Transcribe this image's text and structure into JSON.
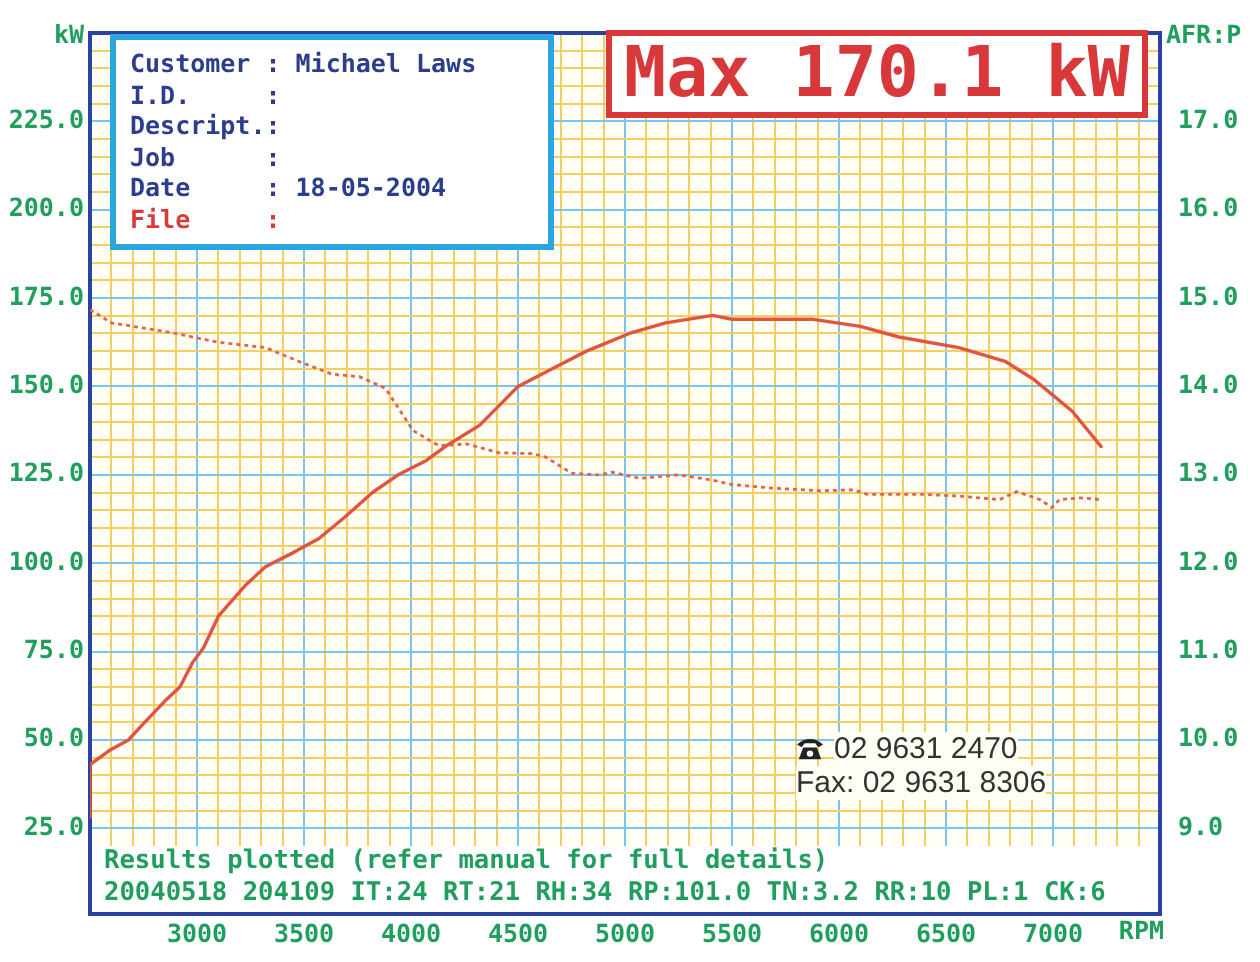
{
  "chart_data": {
    "type": "line",
    "xlabel": "RPM",
    "ylabel": "kW",
    "y2label": "AFR:P",
    "annotations": [
      "Customer : Michael Laws",
      "I.D. :",
      "Descript.:",
      "Job :",
      "Date : 18-05-2004",
      "File :",
      "Max 170.1 kW",
      "02 9631 2470",
      "Fax: 02 9631 8306",
      "Results plotted (refer manual for full details)",
      "20040518 204109 IT:24 RT:21 RH:34 RP:101.0 TN:3.2 RR:10 PL:1 CK:6"
    ],
    "series": [
      {
        "color": "#e0553f",
        "x": [
          2500,
          2500,
          2590,
          2680,
          2740,
          2850,
          2920,
          2980,
          3030,
          3100,
          3230,
          3320,
          3450,
          3570,
          3690,
          3820,
          3940,
          4070,
          4160,
          4320,
          4500,
          4660,
          4820,
          4900,
          5020,
          5190,
          5410,
          5500,
          5880,
          6100,
          6280,
          6560,
          6780,
          6910,
          7090,
          7225
        ],
        "values": [
          28,
          43,
          47,
          50,
          54,
          61,
          65,
          72,
          76,
          85,
          94,
          99,
          103,
          107,
          113,
          120,
          125,
          129,
          133,
          139,
          150,
          155,
          160,
          162,
          165,
          168,
          170.1,
          169,
          169,
          167,
          164,
          161,
          157,
          152,
          143,
          133
        ]
      },
      {
        "axis": "y2",
        "color": "#e0654f",
        "line_style": "dotted",
        "x": [
          2500,
          2600,
          2880,
          3100,
          3320,
          3480,
          3630,
          3760,
          3880,
          3940,
          4010,
          4130,
          4260,
          4410,
          4570,
          4630,
          4750,
          4880,
          4940,
          5070,
          5250,
          5410,
          5500,
          5690,
          5910,
          6070,
          6130,
          6380,
          6560,
          6750,
          6830,
          6940,
          6995,
          7030,
          7130,
          7220
        ],
        "values": [
          14.87,
          14.72,
          14.61,
          14.5,
          14.44,
          14.28,
          14.14,
          14.11,
          13.98,
          13.76,
          13.5,
          13.33,
          13.35,
          13.25,
          13.24,
          13.2,
          13.02,
          13.0,
          13.03,
          12.96,
          13.0,
          12.94,
          12.89,
          12.85,
          12.82,
          12.83,
          12.78,
          12.78,
          12.76,
          12.72,
          12.81,
          12.72,
          12.63,
          12.72,
          12.74,
          12.72
        ]
      }
    ],
    "xlim": [
      2500,
      7500
    ],
    "xticks": [
      {
        "value": 2600,
        "label": null
      },
      {
        "value": 2700,
        "label": null
      },
      {
        "value": 2800,
        "label": null
      },
      {
        "value": 2900,
        "label": null
      },
      3000,
      {
        "value": 3100,
        "label": null
      },
      {
        "value": 3200,
        "label": null
      },
      {
        "value": 3300,
        "label": null
      },
      {
        "value": 3400,
        "label": null
      },
      3500,
      {
        "value": 3600,
        "label": null
      },
      {
        "value": 3700,
        "label": null
      },
      {
        "value": 3800,
        "label": null
      },
      {
        "value": 3900,
        "label": null
      },
      4000,
      {
        "value": 4100,
        "label": null
      },
      {
        "value": 4200,
        "label": null
      },
      {
        "value": 4300,
        "label": null
      },
      {
        "value": 4400,
        "label": null
      },
      4500,
      {
        "value": 4600,
        "label": null
      },
      {
        "value": 4700,
        "label": null
      },
      {
        "value": 4800,
        "label": null
      },
      {
        "value": 4900,
        "label": null
      },
      5000,
      {
        "value": 5100,
        "label": null
      },
      {
        "value": 5200,
        "label": null
      },
      {
        "value": 5300,
        "label": null
      },
      {
        "value": 5400,
        "label": null
      },
      5500,
      {
        "value": 5600,
        "label": null
      },
      {
        "value": 5700,
        "label": null
      },
      {
        "value": 5800,
        "label": null
      },
      {
        "value": 5900,
        "label": null
      },
      6000,
      {
        "value": 6100,
        "label": null
      },
      {
        "value": 6200,
        "label": null
      },
      {
        "value": 6300,
        "label": null
      },
      {
        "value": 6400,
        "label": null
      },
      6500,
      {
        "value": 6600,
        "label": null
      },
      {
        "value": 6700,
        "label": null
      },
      {
        "value": 6800,
        "label": null
      },
      {
        "value": 6900,
        "label": null
      },
      7000,
      {
        "value": 7100,
        "label": null
      },
      {
        "value": 7200,
        "label": null
      },
      {
        "value": 7300,
        "label": null
      },
      {
        "value": 7400,
        "label": null
      }
    ],
    "ylim": [
      20,
      250
    ],
    "yticks": [
      {
        "value": 25,
        "label": "25.0"
      },
      {
        "value": 30,
        "label": null
      },
      {
        "value": 35,
        "label": null
      },
      {
        "value": 40,
        "label": null
      },
      {
        "value": 45,
        "label": null
      },
      {
        "value": 50,
        "label": "50.0"
      },
      {
        "value": 55,
        "label": null
      },
      {
        "value": 60,
        "label": null
      },
      {
        "value": 65,
        "label": null
      },
      {
        "value": 70,
        "label": null
      },
      {
        "value": 75,
        "label": "75.0"
      },
      {
        "value": 80,
        "label": null
      },
      {
        "value": 85,
        "label": null
      },
      {
        "value": 90,
        "label": null
      },
      {
        "value": 95,
        "label": null
      },
      {
        "value": 100,
        "label": "100.0"
      },
      {
        "value": 105,
        "label": null
      },
      {
        "value": 110,
        "label": null
      },
      {
        "value": 115,
        "label": null
      },
      {
        "value": 120,
        "label": null
      },
      {
        "value": 125,
        "label": "125.0"
      },
      {
        "value": 130,
        "label": null
      },
      {
        "value": 135,
        "label": null
      },
      {
        "value": 140,
        "label": null
      },
      {
        "value": 145,
        "label": null
      },
      {
        "value": 150,
        "label": "150.0"
      },
      {
        "value": 155,
        "label": null
      },
      {
        "value": 160,
        "label": null
      },
      {
        "value": 165,
        "label": null
      },
      {
        "value": 170,
        "label": null
      },
      {
        "value": 175,
        "label": "175.0"
      },
      {
        "value": 180,
        "label": null
      },
      {
        "value": 185,
        "label": null
      },
      {
        "value": 190,
        "label": null
      },
      {
        "value": 195,
        "label": null
      },
      {
        "value": 200,
        "label": "200.0"
      },
      {
        "value": 205,
        "label": null
      },
      {
        "value": 210,
        "label": null
      },
      {
        "value": 215,
        "label": null
      },
      {
        "value": 220,
        "label": null
      },
      {
        "value": 225,
        "label": "225.0"
      },
      {
        "value": 230,
        "label": null
      },
      {
        "value": 235,
        "label": null
      },
      {
        "value": 240,
        "label": null
      },
      {
        "value": 245,
        "label": null
      }
    ],
    "y2lim": [
      8.8,
      18.0
    ],
    "y2ticks": [
      {
        "value": 9,
        "label": "9.0"
      },
      {
        "value": 10,
        "label": "10.0"
      },
      {
        "value": 11,
        "label": "11.0"
      },
      {
        "value": 12,
        "label": "12.0"
      },
      {
        "value": 13,
        "label": "13.0"
      },
      {
        "value": 14,
        "label": "14.0"
      },
      {
        "value": 15,
        "label": "15.0"
      },
      {
        "value": 16,
        "label": "16.0"
      },
      {
        "value": 17,
        "label": "17.0"
      }
    ],
    "grid": true,
    "marker": "none"
  }
}
